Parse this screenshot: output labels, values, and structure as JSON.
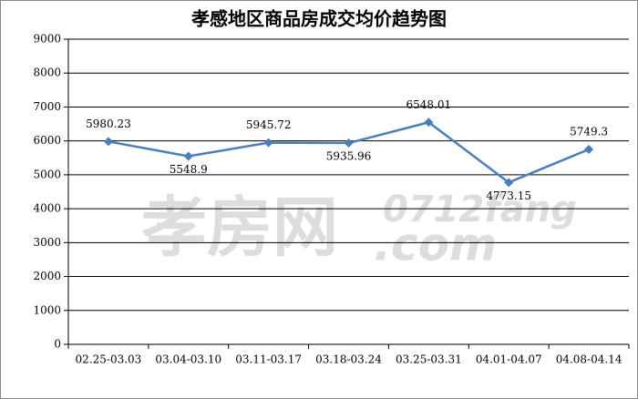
{
  "chart_data": {
    "type": "line",
    "title": "孝感地区商品房成交均价趋势图",
    "categories": [
      "02.25-03.03",
      "03.04-03.10",
      "03.11-03.17",
      "03.18-03.24",
      "03.25-03.31",
      "04.01-04.07",
      "04.08-04.14"
    ],
    "values": [
      5980.23,
      5548.9,
      5945.72,
      5935.96,
      6548.01,
      4773.15,
      5749.3
    ],
    "color": "#4a7ebb",
    "ylim": [
      0,
      9000
    ],
    "yticks": [
      0,
      1000,
      2000,
      3000,
      4000,
      5000,
      6000,
      7000,
      8000,
      9000
    ],
    "grid": true,
    "watermark": [
      "孝房网",
      "0712fang",
      ".com"
    ]
  }
}
